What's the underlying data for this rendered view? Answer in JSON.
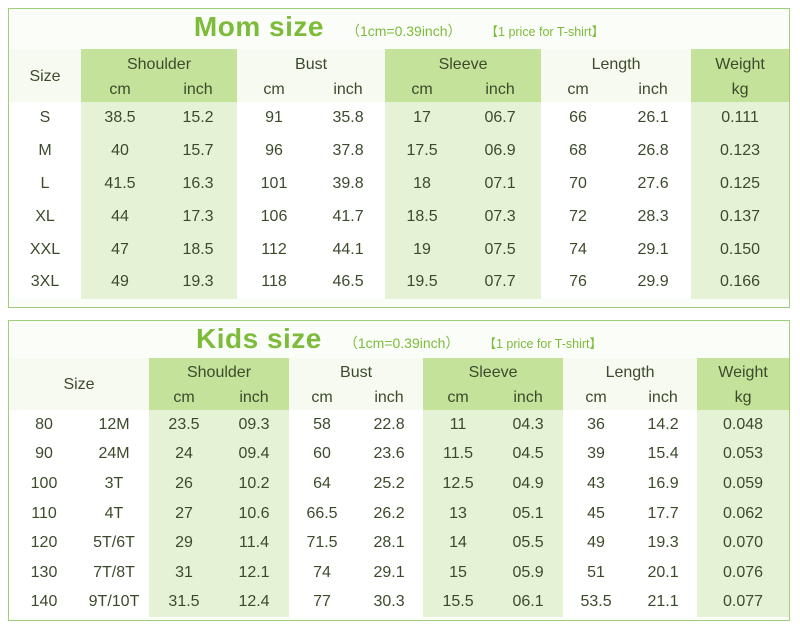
{
  "mom": {
    "title": "Mom size",
    "conversion": "（1cm=0.39inch）",
    "note": "【1 price for T-shirt】",
    "size_header": "Size",
    "groups": [
      "Shoulder",
      "Bust",
      "Sleeve",
      "Length",
      "Weight"
    ],
    "units": [
      "cm",
      "inch",
      "cm",
      "inch",
      "cm",
      "inch",
      "cm",
      "inch",
      "kg"
    ],
    "rows": [
      [
        "S",
        "38.5",
        "15.2",
        "91",
        "35.8",
        "17",
        "06.7",
        "66",
        "26.1",
        "0.111"
      ],
      [
        "M",
        "40",
        "15.7",
        "96",
        "37.8",
        "17.5",
        "06.9",
        "68",
        "26.8",
        "0.123"
      ],
      [
        "L",
        "41.5",
        "16.3",
        "101",
        "39.8",
        "18",
        "07.1",
        "70",
        "27.6",
        "0.125"
      ],
      [
        "XL",
        "44",
        "17.3",
        "106",
        "41.7",
        "18.5",
        "07.3",
        "72",
        "28.3",
        "0.137"
      ],
      [
        "XXL",
        "47",
        "18.5",
        "112",
        "44.1",
        "19",
        "07.5",
        "74",
        "29.1",
        "0.150"
      ],
      [
        "3XL",
        "49",
        "19.3",
        "118",
        "46.5",
        "19.5",
        "07.7",
        "76",
        "29.9",
        "0.166"
      ]
    ]
  },
  "kids": {
    "title": "Kids size",
    "conversion": "（1cm=0.39inch）",
    "note": "【1 price for T-shirt】",
    "size_header": "Size",
    "groups": [
      "Shoulder",
      "Bust",
      "Sleeve",
      "Length",
      "Weight"
    ],
    "units": [
      "cm",
      "inch",
      "cm",
      "inch",
      "cm",
      "inch",
      "cm",
      "inch",
      "kg"
    ],
    "rows": [
      [
        "80",
        "12M",
        "23.5",
        "09.3",
        "58",
        "22.8",
        "11",
        "04.3",
        "36",
        "14.2",
        "0.048"
      ],
      [
        "90",
        "24M",
        "24",
        "09.4",
        "60",
        "23.6",
        "11.5",
        "04.5",
        "39",
        "15.4",
        "0.053"
      ],
      [
        "100",
        "3T",
        "26",
        "10.2",
        "64",
        "25.2",
        "12.5",
        "04.9",
        "43",
        "16.9",
        "0.059"
      ],
      [
        "110",
        "4T",
        "27",
        "10.6",
        "66.5",
        "26.2",
        "13",
        "05.1",
        "45",
        "17.7",
        "0.062"
      ],
      [
        "120",
        "5T/6T",
        "29",
        "11.4",
        "71.5",
        "28.1",
        "14",
        "05.5",
        "49",
        "19.3",
        "0.070"
      ],
      [
        "130",
        "7T/8T",
        "31",
        "12.1",
        "74",
        "29.1",
        "15",
        "05.9",
        "51",
        "20.1",
        "0.076"
      ],
      [
        "140",
        "9T/10T",
        "31.5",
        "12.4",
        "77",
        "30.3",
        "15.5",
        "06.1",
        "53.5",
        "21.1",
        "0.077"
      ]
    ]
  }
}
